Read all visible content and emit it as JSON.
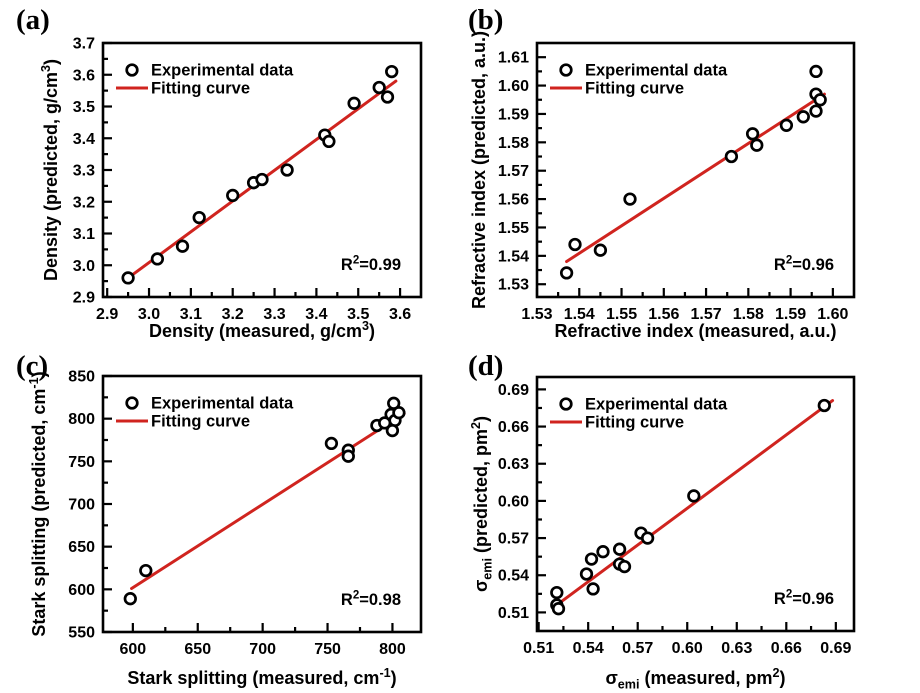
{
  "figure": {
    "background": "#ffffff",
    "fit_line_color": "#d0241f",
    "marker_stroke_color": "#000000",
    "marker_fill_color": "#ffffff",
    "frame_color": "#000000",
    "text_color": "#000000"
  },
  "chart_data": [
    {
      "panel_label": "(a)",
      "type": "scatter",
      "legend": [
        {
          "marker": "circle",
          "label": "Experimental data"
        },
        {
          "marker": "line",
          "label": "Fitting curve"
        }
      ],
      "annotation": [
        {
          "t": "R"
        },
        {
          "t": "2",
          "s": "sup"
        },
        {
          "t": "=0.99"
        }
      ],
      "xlabel": [
        {
          "t": "Density (measured, g/cm"
        },
        {
          "t": "3",
          "s": "sup"
        },
        {
          "t": ")"
        }
      ],
      "ylabel": [
        {
          "t": "Density (predicted, g/cm"
        },
        {
          "t": "3",
          "s": "sup"
        },
        {
          "t": ")"
        }
      ],
      "xlim": [
        2.89,
        3.65
      ],
      "ylim": [
        2.9,
        3.7
      ],
      "xticks": {
        "values": [
          2.9,
          3.0,
          3.1,
          3.2,
          3.3,
          3.4,
          3.5,
          3.6
        ],
        "labels": [
          "2.9",
          "3.0",
          "3.1",
          "3.2",
          "3.3",
          "3.4",
          "3.5",
          "3.6"
        ]
      },
      "yticks": {
        "values": [
          2.9,
          3.0,
          3.1,
          3.2,
          3.3,
          3.4,
          3.5,
          3.6,
          3.7
        ],
        "labels": [
          "2.9",
          "3.0",
          "3.1",
          "3.2",
          "3.3",
          "3.4",
          "3.5",
          "3.6",
          "3.7"
        ]
      },
      "points": [
        [
          2.95,
          2.96
        ],
        [
          3.02,
          3.02
        ],
        [
          3.08,
          3.06
        ],
        [
          3.12,
          3.15
        ],
        [
          3.2,
          3.22
        ],
        [
          3.25,
          3.26
        ],
        [
          3.27,
          3.27
        ],
        [
          3.33,
          3.3
        ],
        [
          3.42,
          3.41
        ],
        [
          3.43,
          3.39
        ],
        [
          3.49,
          3.51
        ],
        [
          3.55,
          3.56
        ],
        [
          3.57,
          3.53
        ],
        [
          3.58,
          3.61
        ]
      ],
      "fit_line": {
        "x": [
          2.95,
          3.59
        ],
        "y": [
          2.96,
          3.58
        ]
      }
    },
    {
      "panel_label": "(b)",
      "type": "scatter",
      "legend": [
        {
          "marker": "circle",
          "label": "Experimental data"
        },
        {
          "marker": "line",
          "label": "Fitting curve"
        }
      ],
      "annotation": [
        {
          "t": "R"
        },
        {
          "t": "2",
          "s": "sup"
        },
        {
          "t": "=0.96"
        }
      ],
      "xlabel": [
        {
          "t": "Refractive index (measured, a.u.)"
        }
      ],
      "ylabel": [
        {
          "t": "Refractive index (predicted, a.u.)"
        }
      ],
      "xlim": [
        1.53,
        1.605
      ],
      "ylim": [
        1.5255,
        1.615
      ],
      "xticks": {
        "values": [
          1.53,
          1.54,
          1.55,
          1.56,
          1.57,
          1.58,
          1.59,
          1.6
        ],
        "labels": [
          "1.53",
          "1.54",
          "1.55",
          "1.56",
          "1.57",
          "1.58",
          "1.59",
          "1.60"
        ]
      },
      "yticks": {
        "values": [
          1.53,
          1.54,
          1.55,
          1.56,
          1.57,
          1.58,
          1.59,
          1.6,
          1.61
        ],
        "labels": [
          "1.53",
          "1.54",
          "1.55",
          "1.56",
          "1.57",
          "1.58",
          "1.59",
          "1.60",
          "1.61"
        ]
      },
      "points": [
        [
          1.537,
          1.534
        ],
        [
          1.539,
          1.544
        ],
        [
          1.545,
          1.542
        ],
        [
          1.552,
          1.56
        ],
        [
          1.576,
          1.575
        ],
        [
          1.581,
          1.583
        ],
        [
          1.582,
          1.579
        ],
        [
          1.589,
          1.586
        ],
        [
          1.593,
          1.589
        ],
        [
          1.596,
          1.591
        ],
        [
          1.596,
          1.597
        ],
        [
          1.597,
          1.595
        ],
        [
          1.596,
          1.605
        ]
      ],
      "fit_line": {
        "x": [
          1.537,
          1.598
        ],
        "y": [
          1.538,
          1.597
        ]
      }
    },
    {
      "panel_label": "(c)",
      "type": "scatter",
      "legend": [
        {
          "marker": "circle",
          "label": "Experimental data"
        },
        {
          "marker": "line",
          "label": "Fitting curve"
        }
      ],
      "annotation": [
        {
          "t": "R"
        },
        {
          "t": "2",
          "s": "sup"
        },
        {
          "t": "=0.98"
        }
      ],
      "xlabel": [
        {
          "t": "Stark splitting (measured, cm"
        },
        {
          "t": "-1",
          "s": "sup"
        },
        {
          "t": ")"
        }
      ],
      "ylabel": [
        {
          "t": "Stark splitting (predicted, cm"
        },
        {
          "t": "-1",
          "s": "sup"
        },
        {
          "t": ")"
        }
      ],
      "xlim": [
        577,
        822
      ],
      "ylim": [
        550,
        850
      ],
      "xticks": {
        "values": [
          600,
          650,
          700,
          750,
          800
        ],
        "labels": [
          "600",
          "650",
          "700",
          "750",
          "800"
        ]
      },
      "yticks": {
        "values": [
          550,
          600,
          650,
          700,
          750,
          800,
          850
        ],
        "labels": [
          "550",
          "600",
          "650",
          "700",
          "750",
          "800",
          "850"
        ]
      },
      "points": [
        [
          598,
          589
        ],
        [
          610,
          622
        ],
        [
          753,
          771
        ],
        [
          766,
          763
        ],
        [
          766,
          756
        ],
        [
          788,
          792
        ],
        [
          794,
          795
        ],
        [
          799,
          805
        ],
        [
          801,
          818
        ],
        [
          802,
          798
        ],
        [
          805,
          807
        ],
        [
          800,
          786
        ]
      ],
      "fit_line": {
        "x": [
          599,
          809
        ],
        "y": [
          601,
          806
        ]
      }
    },
    {
      "panel_label": "(d)",
      "type": "scatter",
      "legend": [
        {
          "marker": "circle",
          "label": "Experimental data"
        },
        {
          "marker": "line",
          "label": "Fitting curve"
        }
      ],
      "annotation": [
        {
          "t": "R"
        },
        {
          "t": "2",
          "s": "sup"
        },
        {
          "t": "=0.96"
        }
      ],
      "xlabel": [
        {
          "t": "σ"
        },
        {
          "t": "emi",
          "s": "sub"
        },
        {
          "t": " (measured, pm"
        },
        {
          "t": "2",
          "s": "sup"
        },
        {
          "t": ")"
        }
      ],
      "ylabel": [
        {
          "t": "σ"
        },
        {
          "t": "emi",
          "s": "sub"
        },
        {
          "t": " (predicted, pm"
        },
        {
          "t": "2",
          "s": "sup"
        },
        {
          "t": ")"
        }
      ],
      "xlim": [
        0.509,
        0.701
      ],
      "ylim": [
        0.495,
        0.7
      ],
      "xticks": {
        "values": [
          0.51,
          0.54,
          0.57,
          0.6,
          0.63,
          0.66,
          0.69
        ],
        "labels": [
          "0.51",
          "0.54",
          "0.57",
          "0.60",
          "0.63",
          "0.66",
          "0.69"
        ]
      },
      "yticks": {
        "values": [
          0.51,
          0.54,
          0.57,
          0.6,
          0.63,
          0.66,
          0.69
        ],
        "labels": [
          "0.51",
          "0.54",
          "0.57",
          "0.60",
          "0.63",
          "0.66",
          "0.69"
        ]
      },
      "points": [
        [
          0.521,
          0.526
        ],
        [
          0.521,
          0.516
        ],
        [
          0.522,
          0.513
        ],
        [
          0.539,
          0.541
        ],
        [
          0.543,
          0.529
        ],
        [
          0.542,
          0.553
        ],
        [
          0.549,
          0.559
        ],
        [
          0.559,
          0.561
        ],
        [
          0.559,
          0.549
        ],
        [
          0.562,
          0.547
        ],
        [
          0.572,
          0.574
        ],
        [
          0.576,
          0.57
        ],
        [
          0.604,
          0.604
        ],
        [
          0.683,
          0.677
        ]
      ],
      "fit_line": {
        "x": [
          0.52,
          0.688
        ],
        "y": [
          0.515,
          0.681
        ]
      }
    }
  ]
}
